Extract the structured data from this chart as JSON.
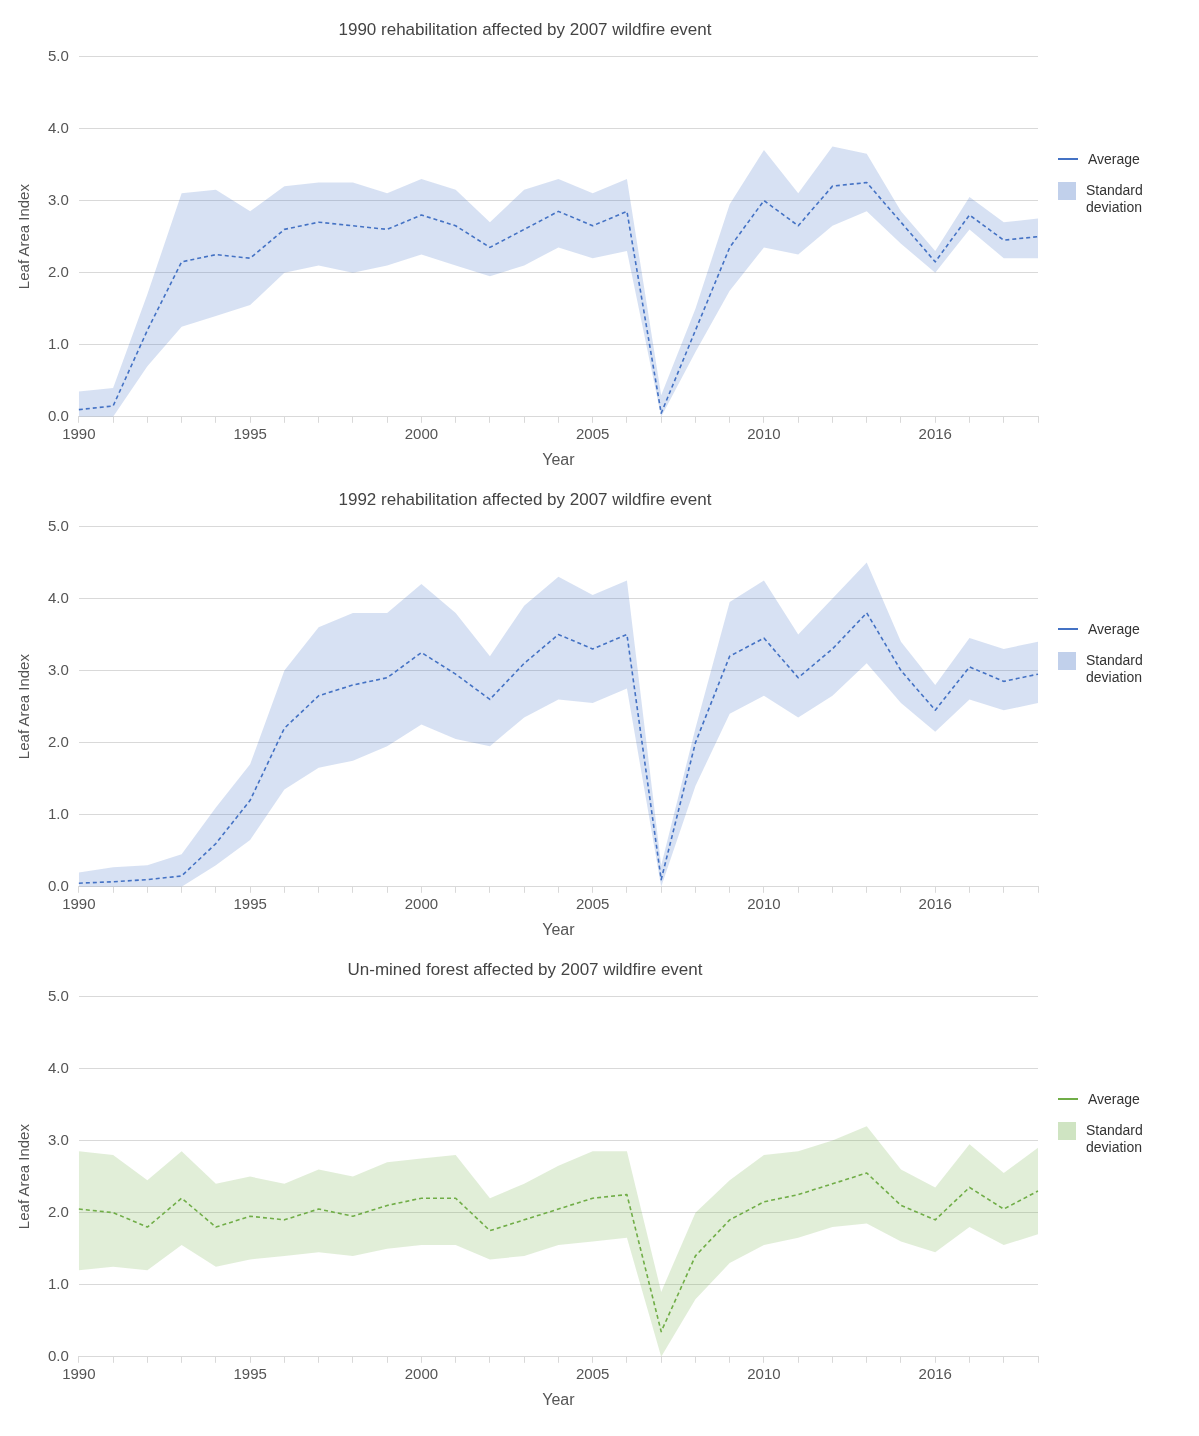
{
  "chart_data": [
    {
      "type": "line",
      "title": "1990 rehabilitation affected by 2007 wildfire event",
      "xlabel": "Year",
      "ylabel": "Leaf Area Index",
      "categories": [
        "1990",
        null,
        null,
        null,
        null,
        "1995",
        null,
        null,
        null,
        null,
        "2000",
        null,
        null,
        null,
        null,
        "2005",
        null,
        null,
        null,
        null,
        "2010",
        null,
        null,
        null,
        null,
        "2016",
        null,
        null,
        null
      ],
      "series": [
        {
          "name": "Average",
          "color": "#4472c4",
          "values": [
            0.1,
            0.15,
            1.2,
            2.15,
            2.25,
            2.2,
            2.6,
            2.7,
            2.65,
            2.6,
            2.8,
            2.65,
            2.35,
            2.6,
            2.85,
            2.65,
            2.85,
            0.05,
            1.2,
            2.35,
            3.0,
            2.65,
            3.2,
            3.25,
            2.7,
            2.15,
            2.8,
            2.45,
            2.5
          ],
          "upper": [
            0.35,
            0.4,
            1.7,
            3.1,
            3.15,
            2.85,
            3.2,
            3.25,
            3.25,
            3.1,
            3.3,
            3.15,
            2.7,
            3.15,
            3.3,
            3.1,
            3.3,
            0.3,
            1.5,
            2.95,
            3.7,
            3.1,
            3.75,
            3.65,
            2.85,
            2.3,
            3.05,
            2.7,
            2.75
          ],
          "lower": [
            0,
            0,
            0.7,
            1.25,
            1.4,
            1.55,
            2.0,
            2.1,
            2.0,
            2.1,
            2.25,
            2.1,
            1.95,
            2.1,
            2.35,
            2.2,
            2.3,
            0,
            0.9,
            1.75,
            2.35,
            2.25,
            2.65,
            2.85,
            2.4,
            2.0,
            2.6,
            2.2,
            2.2
          ]
        }
      ],
      "annotations": [
        "Standard deviation"
      ],
      "ylim": [
        0,
        5
      ],
      "yticks": [
        {
          "value": 0,
          "label": "0.0"
        },
        {
          "value": 1,
          "label": "1.0"
        },
        {
          "value": 2,
          "label": "2.0"
        },
        {
          "value": 3,
          "label": "3.0"
        },
        {
          "value": 4,
          "label": "4.0"
        },
        {
          "value": 5,
          "label": "5.0"
        }
      ],
      "grid": "y",
      "legend": "right",
      "line_style": "dashed"
    },
    {
      "type": "line",
      "title": "1992 rehabilitation affected by 2007 wildfire event",
      "xlabel": "Year",
      "ylabel": "Leaf Area Index",
      "categories": [
        "1990",
        null,
        null,
        null,
        null,
        "1995",
        null,
        null,
        null,
        null,
        "2000",
        null,
        null,
        null,
        null,
        "2005",
        null,
        null,
        null,
        null,
        "2010",
        null,
        null,
        null,
        null,
        "2016",
        null,
        null,
        null
      ],
      "series": [
        {
          "name": "Average",
          "color": "#4472c4",
          "values": [
            0.05,
            0.07,
            0.1,
            0.15,
            0.6,
            1.2,
            2.2,
            2.65,
            2.8,
            2.9,
            3.25,
            2.95,
            2.6,
            3.1,
            3.5,
            3.3,
            3.5,
            0.1,
            2.0,
            3.2,
            3.45,
            2.9,
            3.3,
            3.8,
            3.0,
            2.45,
            3.05,
            2.85,
            2.95
          ],
          "upper": [
            0.2,
            0.27,
            0.3,
            0.45,
            1.1,
            1.7,
            3.0,
            3.6,
            3.8,
            3.8,
            4.2,
            3.8,
            3.2,
            3.9,
            4.3,
            4.05,
            4.25,
            0.3,
            2.2,
            3.95,
            4.25,
            3.5,
            4.0,
            4.5,
            3.4,
            2.8,
            3.45,
            3.3,
            3.4
          ],
          "lower": [
            0,
            0,
            0,
            0,
            0.3,
            0.65,
            1.35,
            1.65,
            1.75,
            1.95,
            2.25,
            2.05,
            1.95,
            2.35,
            2.6,
            2.55,
            2.75,
            0,
            1.4,
            2.4,
            2.65,
            2.35,
            2.65,
            3.1,
            2.55,
            2.15,
            2.6,
            2.45,
            2.55
          ]
        }
      ],
      "annotations": [
        "Standard deviation"
      ],
      "ylim": [
        0,
        5
      ],
      "yticks": [
        {
          "value": 0,
          "label": "0.0"
        },
        {
          "value": 1,
          "label": "1.0"
        },
        {
          "value": 2,
          "label": "2.0"
        },
        {
          "value": 3,
          "label": "3.0"
        },
        {
          "value": 4,
          "label": "4.0"
        },
        {
          "value": 5,
          "label": "5.0"
        }
      ],
      "grid": "y",
      "legend": "right",
      "line_style": "dashed"
    },
    {
      "type": "line",
      "title": "Un-mined forest affected by 2007 wildfire event",
      "xlabel": "Year",
      "ylabel": "Leaf Area Index",
      "categories": [
        "1990",
        null,
        null,
        null,
        null,
        "1995",
        null,
        null,
        null,
        null,
        "2000",
        null,
        null,
        null,
        null,
        "2005",
        null,
        null,
        null,
        null,
        "2010",
        null,
        null,
        null,
        null,
        "2016",
        null,
        null,
        null
      ],
      "series": [
        {
          "name": "Average",
          "color": "#70ad47",
          "values": [
            2.05,
            2.0,
            1.8,
            2.2,
            1.8,
            1.95,
            1.9,
            2.05,
            1.95,
            2.1,
            2.2,
            2.2,
            1.75,
            1.9,
            2.05,
            2.2,
            2.25,
            0.35,
            1.4,
            1.9,
            2.15,
            2.25,
            2.4,
            2.55,
            2.1,
            1.9,
            2.35,
            2.05,
            2.3
          ],
          "upper": [
            2.85,
            2.8,
            2.45,
            2.85,
            2.4,
            2.5,
            2.4,
            2.6,
            2.5,
            2.7,
            2.75,
            2.8,
            2.2,
            2.4,
            2.65,
            2.85,
            2.85,
            0.9,
            2.0,
            2.45,
            2.8,
            2.85,
            3.0,
            3.2,
            2.6,
            2.35,
            2.95,
            2.55,
            2.9
          ],
          "lower": [
            1.2,
            1.25,
            1.2,
            1.55,
            1.25,
            1.35,
            1.4,
            1.45,
            1.4,
            1.5,
            1.55,
            1.55,
            1.35,
            1.4,
            1.55,
            1.6,
            1.65,
            0,
            0.8,
            1.3,
            1.55,
            1.65,
            1.8,
            1.85,
            1.6,
            1.45,
            1.8,
            1.55,
            1.7
          ]
        }
      ],
      "annotations": [
        "Standard deviation"
      ],
      "ylim": [
        0,
        5
      ],
      "yticks": [
        {
          "value": 0,
          "label": "0.0"
        },
        {
          "value": 1,
          "label": "1.0"
        },
        {
          "value": 2,
          "label": "2.0"
        },
        {
          "value": 3,
          "label": "3.0"
        },
        {
          "value": 4,
          "label": "4.0"
        },
        {
          "value": 5,
          "label": "5.0"
        }
      ],
      "grid": "y",
      "legend": "right",
      "line_style": "dashed"
    }
  ]
}
